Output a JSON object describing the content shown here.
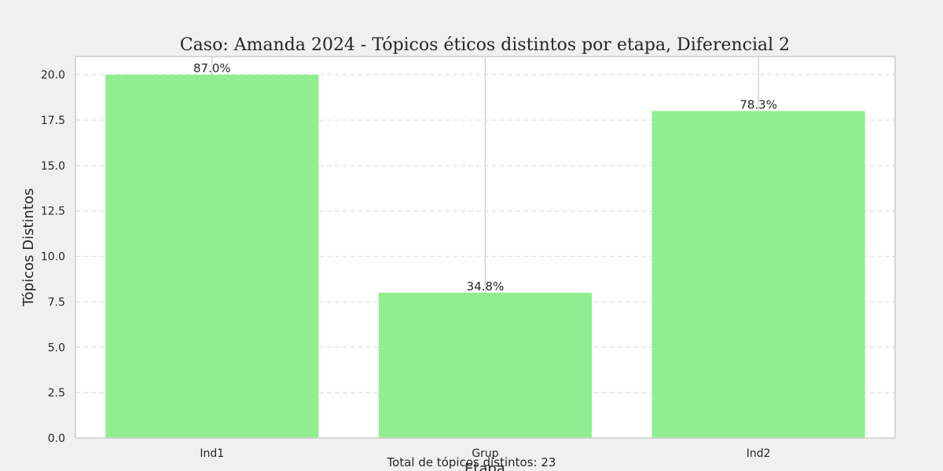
{
  "chart_data": {
    "type": "bar",
    "title": "Caso: Amanda 2024 - Tópicos éticos distintos por etapa, Diferencial 2",
    "xlabel": "Etapa",
    "ylabel": "Tópicos Distintos",
    "categories": [
      "Ind1",
      "Grup",
      "Ind2"
    ],
    "values": [
      20,
      8,
      18
    ],
    "data_labels": [
      "87.0%",
      "34.8%",
      "78.3%"
    ],
    "ylim": [
      0,
      21
    ],
    "yticks": [
      0,
      2.5,
      5,
      7.5,
      10,
      12.5,
      15,
      17.5,
      20
    ],
    "ytick_labels": [
      "0.0",
      "2.5",
      "5.0",
      "7.5",
      "10.0",
      "12.5",
      "15.0",
      "17.5",
      "20.0"
    ],
    "grid": true,
    "bar_color": "#90ee90",
    "footnote": "Total de tópicos distintos: 23"
  }
}
